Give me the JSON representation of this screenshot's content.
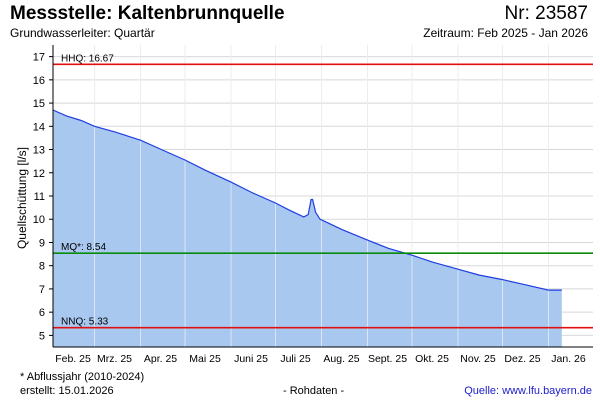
{
  "header": {
    "title": "Messstelle: Kaltenbrunnquelle",
    "subtitle": "Grundwasserleiter: Quartär",
    "station_nr": "Nr: 23587",
    "period": "Zeitraum: Feb 2025 - Jan 2026"
  },
  "footer": {
    "footnote": "* Abflussjahr (2010-2024)",
    "created": "erstellt:  15.01.2026",
    "raw_data": "- Rohdaten -",
    "source": "Quelle: www.lfu.bayern.de"
  },
  "colors": {
    "fill": "#a8c8f0",
    "line": "#1f3fe0",
    "hhq_line": "#e01010",
    "nnq_line": "#e01010",
    "mq_line": "#0a8a0a",
    "grid": "#d8d8d8"
  },
  "chart_data": {
    "type": "area",
    "title": "",
    "ylabel": "Quellschüttung [l/s]",
    "ylim": [
      4.5,
      17.5
    ],
    "yticks": [
      5,
      6,
      7,
      8,
      9,
      10,
      11,
      12,
      13,
      14,
      15,
      16,
      17
    ],
    "xlim": [
      "2025-02-01",
      "2026-01-31"
    ],
    "xticks": [
      {
        "date": "2025-02-01",
        "label": "Feb. 25"
      },
      {
        "date": "2025-03-01",
        "label": "Mrz. 25"
      },
      {
        "date": "2025-04-01",
        "label": "Apr. 25"
      },
      {
        "date": "2025-05-01",
        "label": "Mai 25"
      },
      {
        "date": "2025-06-01",
        "label": "Juni 25"
      },
      {
        "date": "2025-07-01",
        "label": "Juli 25"
      },
      {
        "date": "2025-08-01",
        "label": "Aug. 25"
      },
      {
        "date": "2025-09-01",
        "label": "Sept. 25"
      },
      {
        "date": "2025-10-01",
        "label": "Okt. 25"
      },
      {
        "date": "2025-11-01",
        "label": "Nov. 25"
      },
      {
        "date": "2025-12-01",
        "label": "Dez. 25"
      },
      {
        "date": "2026-01-01",
        "label": "Jan. 26"
      }
    ],
    "grid": true,
    "series": [
      {
        "x": [
          "2025-02-01",
          "2025-02-10",
          "2025-02-20",
          "2025-03-01",
          "2025-03-15",
          "2025-04-01",
          "2025-04-15",
          "2025-05-01",
          "2025-05-15",
          "2025-06-01",
          "2025-06-15",
          "2025-07-01",
          "2025-07-10",
          "2025-07-20",
          "2025-07-23",
          "2025-07-25",
          "2025-07-26",
          "2025-07-28",
          "2025-07-31",
          "2025-08-05",
          "2025-08-15",
          "2025-09-01",
          "2025-09-15",
          "2025-10-01",
          "2025-10-15",
          "2025-11-01",
          "2025-11-15",
          "2025-12-01",
          "2025-12-15",
          "2026-01-01",
          "2026-01-10"
        ],
        "y": [
          14.7,
          14.45,
          14.25,
          14.0,
          13.75,
          13.4,
          13.0,
          12.55,
          12.1,
          11.6,
          11.15,
          10.7,
          10.4,
          10.1,
          10.2,
          10.85,
          10.85,
          10.3,
          10.0,
          9.85,
          9.55,
          9.1,
          8.75,
          8.45,
          8.15,
          7.85,
          7.6,
          7.4,
          7.2,
          6.95,
          6.95
        ]
      }
    ],
    "reference_lines": [
      {
        "label": "HHQ: 16.67",
        "value": 16.67,
        "color": "#e01010"
      },
      {
        "label": "MQ*: 8.54",
        "value": 8.54,
        "color": "#0a8a0a"
      },
      {
        "label": "NNQ: 5.33",
        "value": 5.33,
        "color": "#e01010"
      }
    ]
  }
}
